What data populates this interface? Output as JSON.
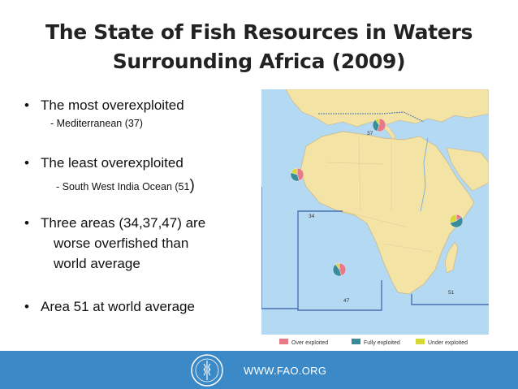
{
  "title": {
    "line1": "The State of Fish Resources in Waters",
    "line2": "Surrounding Africa (2009)"
  },
  "bullets": {
    "b1": "The most overexploited",
    "b1_sub": "- Mediterranean (37)",
    "b2": "The least overexploited",
    "b2_sub": "- South West India Ocean (51",
    "b2_paren": ")",
    "b3_line1": "Three areas (34,37,47) are",
    "b3_line2": "worse overfished than",
    "b3_line3": "world average",
    "b4": "Area 51 at world average"
  },
  "map": {
    "area_labels": {
      "a34": "34",
      "a37": "37",
      "a47": "47",
      "a51": "51"
    },
    "legend": {
      "over": "Over exploited",
      "fully": "Fully exploited",
      "under": "Under exploited"
    },
    "colors": {
      "over": "#e87a87",
      "fully": "#3a8c9a",
      "under": "#d6d83a",
      "ocean": "#b4d9f2",
      "land": "#f3e4a6",
      "border": "#4a73b3"
    },
    "pie_values": {
      "area_37": {
        "over": 0.55,
        "fully": 0.35,
        "under": 0.1
      },
      "area_34": {
        "over": 0.45,
        "fully": 0.35,
        "under": 0.2
      },
      "area_47": {
        "over": 0.45,
        "fully": 0.45,
        "under": 0.1
      },
      "area_51": {
        "over": 0.15,
        "fully": 0.55,
        "under": 0.3
      }
    }
  },
  "footer": {
    "url": "WWW.FAO.ORG"
  }
}
